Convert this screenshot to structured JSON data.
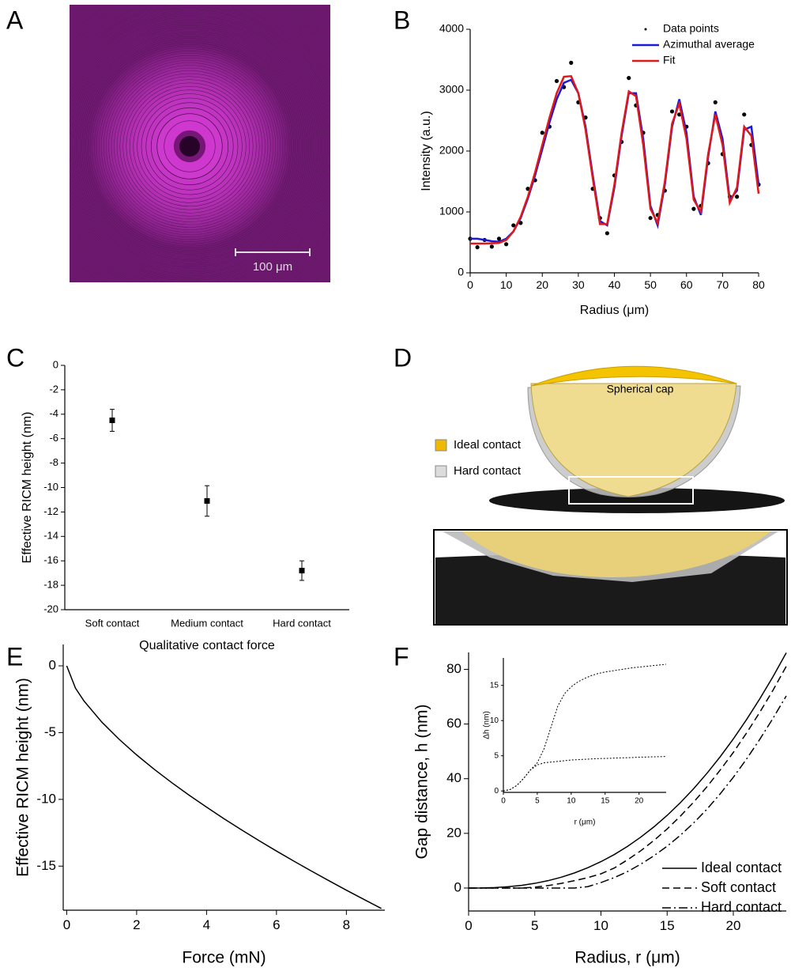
{
  "panel_labels": [
    "A",
    "B",
    "C",
    "D",
    "E",
    "F"
  ],
  "image": {
    "scale_bar": "100 μm"
  },
  "diagram": {
    "cap_label": "Spherical cap",
    "legend": [
      "Ideal contact",
      "Hard contact"
    ]
  },
  "chart_data": [
    {
      "type": "line",
      "x_label": "Radius (μm)",
      "y_label": "Intensity (a.u.)",
      "xlim": [
        0,
        80
      ],
      "ylim": [
        0,
        4000
      ],
      "xticks": [
        0,
        10,
        20,
        30,
        40,
        50,
        60,
        70,
        80
      ],
      "yticks": [
        0,
        1000,
        2000,
        3000,
        4000
      ],
      "legend": "upper right",
      "x": [
        0,
        2,
        4,
        6,
        8,
        10,
        12,
        14,
        16,
        18,
        20,
        22,
        24,
        26,
        28,
        30,
        32,
        34,
        36,
        38,
        40,
        42,
        44,
        46,
        48,
        50,
        52,
        54,
        56,
        58,
        60,
        62,
        64,
        66,
        68,
        70,
        72,
        74,
        76,
        78,
        80
      ],
      "series": [
        {
          "name": "Data points",
          "color": "#000000",
          "marker": "dot",
          "values": [
            560,
            420,
            540,
            430,
            560,
            470,
            780,
            820,
            1380,
            1520,
            2300,
            2400,
            3150,
            3050,
            3450,
            2800,
            2550,
            1380,
            900,
            650,
            1600,
            2150,
            3200,
            2750,
            2300,
            900,
            950,
            1350,
            2650,
            2600,
            2400,
            1050,
            1100,
            1800,
            2800,
            1950,
            1250,
            1250,
            2600,
            2100,
            1450
          ]
        },
        {
          "name": "Azimuthal average",
          "color": "#1a1ad8",
          "values": [
            560,
            560,
            540,
            520,
            510,
            560,
            680,
            900,
            1220,
            1600,
            2030,
            2470,
            2850,
            3120,
            3170,
            2950,
            2400,
            1600,
            850,
            780,
            1400,
            2250,
            2950,
            2950,
            2200,
            1100,
            780,
            1450,
            2400,
            2850,
            2300,
            1250,
            950,
            1900,
            2650,
            2200,
            1200,
            1350,
            2350,
            2400,
            1450
          ]
        },
        {
          "name": "Fit",
          "color": "#e01818",
          "values": [
            480,
            480,
            480,
            485,
            490,
            540,
            680,
            920,
            1250,
            1650,
            2100,
            2550,
            2950,
            3220,
            3230,
            2950,
            2350,
            1550,
            800,
            800,
            1450,
            2300,
            2980,
            2900,
            2100,
            1050,
            820,
            1500,
            2450,
            2780,
            2200,
            1200,
            1000,
            1950,
            2600,
            2100,
            1150,
            1400,
            2400,
            2250,
            1300
          ]
        }
      ]
    },
    {
      "type": "errorbar",
      "x_label": "Qualitative contact force",
      "y_label": "Effective RICM height (nm)",
      "categories": [
        "Soft contact",
        "Medium contact",
        "Hard contact"
      ],
      "values": [
        -4.5,
        -11.1,
        -16.8
      ],
      "errors": [
        0.9,
        1.25,
        0.8
      ],
      "color": "#000000",
      "ylim": [
        -20,
        0
      ],
      "yticks": [
        0,
        -2,
        -4,
        -6,
        -8,
        -10,
        -12,
        -14,
        -16,
        -18,
        -20
      ]
    },
    {
      "type": "line",
      "x_label": "Force (mN)",
      "y_label": "Effective RICM height (nm)",
      "xlim": [
        -0.1,
        9.1
      ],
      "ylim": [
        -18.3,
        1.6
      ],
      "xticks": [
        0,
        2,
        4,
        6,
        8
      ],
      "yticks": [
        0,
        -5,
        -10,
        -15
      ],
      "x": [
        0,
        0.25,
        0.5,
        1,
        1.5,
        2,
        2.5,
        3,
        3.5,
        4,
        4.5,
        5,
        5.5,
        6,
        6.5,
        7,
        7.5,
        8,
        8.5,
        9
      ],
      "color": "#000000",
      "values": [
        0,
        -1.67,
        -2.65,
        -4.2,
        -5.5,
        -6.67,
        -7.74,
        -8.74,
        -9.68,
        -10.58,
        -11.45,
        -12.28,
        -13.09,
        -13.87,
        -14.63,
        -15.37,
        -16.09,
        -16.8,
        -17.49,
        -18.17
      ]
    },
    {
      "type": "line",
      "x_label": "Radius, r (μm)",
      "y_label": "Gap distance, h (nm)",
      "xlim": [
        0,
        24
      ],
      "ylim": [
        -8.4,
        86.2
      ],
      "xticks": [
        0,
        5,
        10,
        15,
        20
      ],
      "yticks": [
        0,
        20,
        40,
        60,
        80
      ],
      "legend": "lower right",
      "x": [
        0,
        1,
        2,
        3,
        4,
        5,
        6,
        7,
        8,
        9,
        10,
        11,
        12,
        13,
        14,
        15,
        16,
        17,
        18,
        19,
        20,
        21,
        22,
        23,
        24
      ],
      "series": [
        {
          "name": "Ideal contact",
          "color": "#000000",
          "dash": "solid",
          "values": [
            0,
            0.03,
            0.17,
            0.48,
            0.98,
            1.71,
            2.69,
            3.95,
            5.52,
            7.41,
            9.65,
            12.23,
            15.21,
            18.59,
            22.37,
            26.57,
            31.23,
            36.34,
            41.92,
            47.98,
            54.55,
            61.63,
            69.22,
            77.33,
            86.07
          ]
        },
        {
          "name": "Soft contact",
          "color": "#000000",
          "dash": "dashed",
          "values": [
            0,
            0,
            0,
            0,
            0,
            0.3,
            0.9,
            1.7,
            2.7,
            3.8,
            5.2,
            7.3,
            10.3,
            13.6,
            17.4,
            21.6,
            26.3,
            31.4,
            37,
            43.1,
            49.6,
            56.7,
            64.3,
            72.4,
            81.1
          ]
        },
        {
          "name": "Hard contact",
          "color": "#000000",
          "dash": "dashdot",
          "values": [
            0,
            0,
            0,
            0,
            0,
            0,
            0,
            0,
            0,
            0.5,
            2,
            3.8,
            6,
            8.7,
            11.8,
            15.3,
            19.3,
            23.8,
            28.8,
            34.4,
            40.5,
            47.2,
            54.4,
            62.1,
            70.3
          ]
        }
      ]
    },
    {
      "type": "line",
      "x_label": "r (μm)",
      "y_label": "Δh (nm)",
      "xlim": [
        0,
        24
      ],
      "ylim": [
        -0.2,
        18.9
      ],
      "xticks": [
        0,
        5,
        10,
        15,
        20
      ],
      "yticks": [
        0,
        5,
        10,
        15
      ],
      "x": [
        0,
        1,
        2,
        3,
        4,
        5,
        6,
        7,
        8,
        9,
        10,
        11,
        12,
        13,
        14,
        15,
        16,
        17,
        18,
        19,
        20,
        21,
        22,
        23,
        24
      ],
      "series": [
        {
          "color": "#000000",
          "dash": "dotted",
          "values": [
            0,
            0.2,
            0.8,
            1.8,
            3,
            3.7,
            4,
            4.1,
            4.2,
            4.3,
            4.4,
            4.45,
            4.5,
            4.55,
            4.6,
            4.62,
            4.65,
            4.7,
            4.72,
            4.75,
            4.8,
            4.82,
            4.85,
            4.87,
            4.9
          ]
        },
        {
          "color": "#000000",
          "dash": "dotted",
          "values": [
            0,
            0.2,
            0.8,
            1.8,
            3,
            4,
            6,
            9,
            12,
            13.8,
            14.8,
            15.5,
            16,
            16.4,
            16.7,
            16.9,
            17.05,
            17.2,
            17.35,
            17.5,
            17.6,
            17.7,
            17.8,
            17.9,
            18
          ]
        }
      ]
    }
  ]
}
